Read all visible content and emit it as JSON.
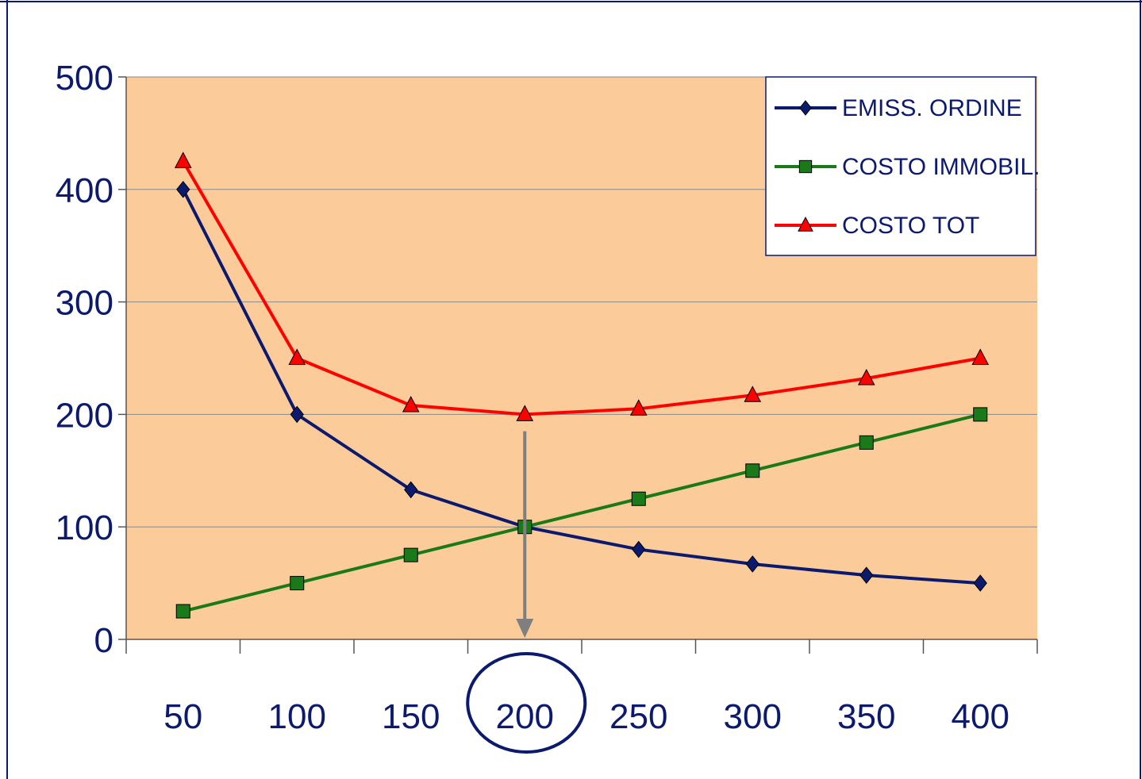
{
  "chart_data": {
    "type": "line",
    "categories": [
      "50",
      "100",
      "150",
      "200",
      "250",
      "300",
      "350",
      "400"
    ],
    "series": [
      {
        "name": "EMISS. ORDINE",
        "values": [
          400,
          200,
          133,
          100,
          80,
          67,
          57,
          50
        ],
        "color": "#0b1a6e",
        "marker": "diamond"
      },
      {
        "name": "COSTO IMMOBIL.",
        "values": [
          25,
          50,
          75,
          100,
          125,
          150,
          175,
          200
        ],
        "color": "#1a7a1a",
        "marker": "square"
      },
      {
        "name": "COSTO TOT",
        "values": [
          425,
          250,
          208,
          200,
          205,
          217,
          232,
          250
        ],
        "color": "#ff0000",
        "marker": "triangle"
      }
    ],
    "yticks": [
      "0",
      "100",
      "200",
      "300",
      "400",
      "500"
    ],
    "ylim": [
      0,
      500
    ],
    "grid": true,
    "legend_position": "top-right",
    "plot_background": "#fbcb99",
    "annotation": {
      "category": "200",
      "value": 185,
      "note": "arrow down to x-axis, category circled"
    }
  }
}
